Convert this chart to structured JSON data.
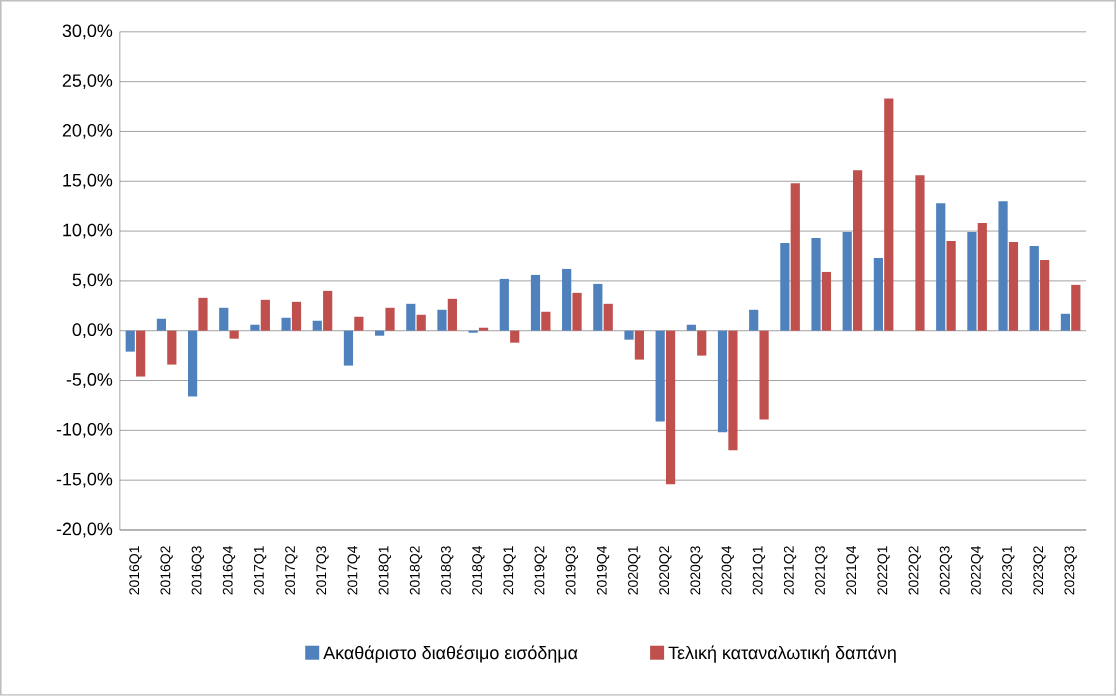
{
  "chart_data": {
    "type": "bar",
    "categories": [
      "2016Q1",
      "2016Q2",
      "2016Q3",
      "2016Q4",
      "2017Q1",
      "2017Q2",
      "2017Q3",
      "2017Q4",
      "2018Q1",
      "2018Q2",
      "2018Q3",
      "2018Q4",
      "2019Q1",
      "2019Q2",
      "2019Q3",
      "2019Q4",
      "2020Q1",
      "2020Q2",
      "2020Q3",
      "2020Q4",
      "2021Q1",
      "2021Q2",
      "2021Q3",
      "2021Q4",
      "2022Q1",
      "2022Q2",
      "2022Q3",
      "2022Q4",
      "2023Q1",
      "2023Q2",
      "2023Q3"
    ],
    "series": [
      {
        "name": "Ακαθάριστο διαθέσιμο εισόδημα",
        "color": "#4f81bd",
        "values": [
          -2.1,
          1.2,
          -6.6,
          2.3,
          0.6,
          1.3,
          1.0,
          -3.5,
          -0.5,
          2.7,
          2.1,
          -0.2,
          5.2,
          5.6,
          6.2,
          4.7,
          -0.9,
          -9.1,
          0.6,
          -10.2,
          2.1,
          8.8,
          9.3,
          9.9,
          7.3,
          0.0,
          12.8,
          9.9,
          13.0,
          8.5,
          1.7
        ]
      },
      {
        "name": "Τελική καταναλωτική δαπάνη",
        "color": "#c0504d",
        "values": [
          -4.6,
          -3.4,
          3.3,
          -0.8,
          3.1,
          2.9,
          4.0,
          1.4,
          2.3,
          1.6,
          3.2,
          0.3,
          -1.2,
          1.9,
          3.8,
          2.7,
          -2.9,
          -15.4,
          -2.5,
          -12.0,
          -8.9,
          14.8,
          5.9,
          16.1,
          23.3,
          15.6,
          9.0,
          10.8,
          8.9,
          7.1,
          4.6
        ]
      }
    ],
    "ylim": [
      -20,
      30
    ],
    "yticks": [
      {
        "value": -20,
        "label": "-20,0%"
      },
      {
        "value": -15,
        "label": "-15,0%"
      },
      {
        "value": -10,
        "label": "-10,0%"
      },
      {
        "value": -5,
        "label": "-5,0%"
      },
      {
        "value": 0,
        "label": "0,0%"
      },
      {
        "value": 5,
        "label": "5,0%"
      },
      {
        "value": 10,
        "label": "10,0%"
      },
      {
        "value": 15,
        "label": "15,0%"
      },
      {
        "value": 20,
        "label": "20,0%"
      },
      {
        "value": 25,
        "label": "25,0%"
      },
      {
        "value": 30,
        "label": "30,0%"
      }
    ],
    "grid": "y",
    "legend": "bottom"
  }
}
